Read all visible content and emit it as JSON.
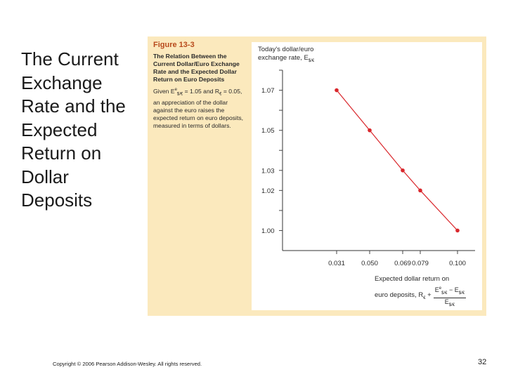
{
  "slide": {
    "title": "The Current Exchange Rate and the Expected Return on Dollar Deposits",
    "copyright": "Copyright © 2006 Pearson Addison-Wesley. All rights reserved.",
    "page_number": "32"
  },
  "figure": {
    "number": "Figure 13-3",
    "title": "The Relation Between the Current Dollar/Euro Exchange Rate and the Expected Dollar Return on Euro Deposits",
    "text_given": "Given E",
    "text_eq1": " = 1.05 and",
    "text_r": "R",
    "text_eq2": " = 0.05, an appreciation of the dollar against the euro raises the expected return on euro deposits, measured in terms of dollars.",
    "sub_euro": "€",
    "sub_rate": "$/€",
    "sup_e": "e",
    "panel_color": "#fbe9bd",
    "figure_number_color": "#b84a1c"
  },
  "chart_data": {
    "type": "line",
    "title": "",
    "ylabel_line1": "Today's dollar/euro",
    "ylabel_line2": "exchange rate, E",
    "ylabel_sub": "$/€",
    "xlabel_line1": "Expected dollar return on",
    "xlabel_line2": "euro deposits, R",
    "xlabel_sub": "€",
    "xlabel_plus": "+",
    "xlabel_num": "E",
    "xlabel_num_sup": "e",
    "xlabel_num_sub": "$/€",
    "xlabel_minus": " − E",
    "xlabel_den": "E",
    "xlabel_den_sub": "$/€",
    "x_ticks": [
      "0.031",
      "0.050",
      "0.069",
      "0.079",
      "0.100"
    ],
    "y_ticks": [
      "1.07",
      "1.05",
      "1.03",
      "1.02",
      "1.00"
    ],
    "y_tick_values": [
      1.07,
      1.05,
      1.03,
      1.02,
      1.0
    ],
    "ylim": [
      0.99,
      1.08
    ],
    "series": [
      {
        "color": "#d9262b",
        "points": [
          {
            "x": 0.031,
            "y": 1.07
          },
          {
            "x": 0.05,
            "y": 1.05
          },
          {
            "x": 0.069,
            "y": 1.03
          },
          {
            "x": 0.079,
            "y": 1.02
          },
          {
            "x": 0.1,
            "y": 1.0
          }
        ]
      }
    ]
  }
}
